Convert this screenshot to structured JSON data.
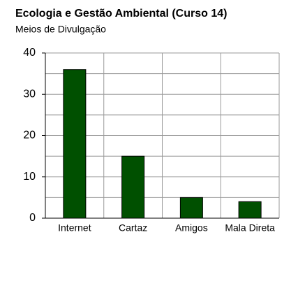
{
  "chart_data": {
    "type": "bar",
    "title": "Ecologia e Gestão Ambiental (Curso 14)",
    "subtitle": "Meios de Divulgação",
    "categories": [
      "Internet",
      "Cartaz",
      "Amigos",
      "Mala Direta"
    ],
    "values": [
      36,
      15,
      5,
      4
    ],
    "color": "#005000",
    "ylim": [
      0,
      40
    ],
    "yticks": [
      0,
      10,
      20,
      30,
      40
    ],
    "minor_yticks": [
      5,
      15,
      25,
      35
    ],
    "grid": true
  }
}
